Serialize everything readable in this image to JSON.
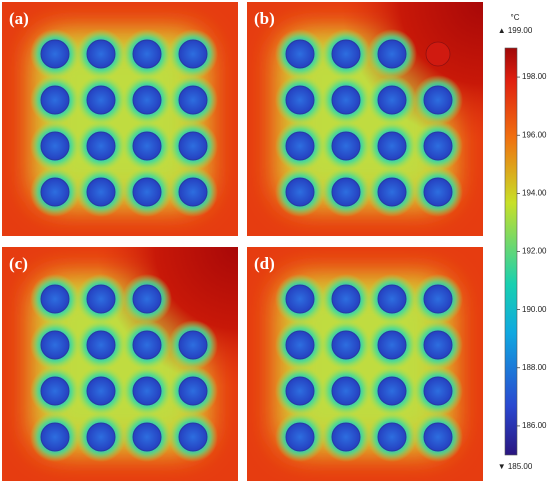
{
  "panels": [
    {
      "label": "(a)",
      "rows": 4,
      "cols": 4,
      "removed_cell": null
    },
    {
      "label": "(b)",
      "rows": 4,
      "cols": 4,
      "removed_cell": [
        0,
        3
      ]
    },
    {
      "label": "(c)",
      "rows": 4,
      "cols": 4,
      "removed_cell": [
        0,
        3
      ]
    },
    {
      "label": "(d)",
      "rows": 4,
      "cols": 4,
      "removed_cell": null
    }
  ],
  "colorbar": {
    "unit": "°C",
    "max": {
      "value": 199,
      "label": "▲ 199.00"
    },
    "min": {
      "value": 185,
      "label": "▼ 185.00"
    },
    "ticks": [
      {
        "value": 186,
        "label": "186.00"
      },
      {
        "value": 188,
        "label": "188.00"
      },
      {
        "value": 190,
        "label": "190.00"
      },
      {
        "value": 192,
        "label": "192.00"
      },
      {
        "value": 194,
        "label": "194.00"
      },
      {
        "value": 196,
        "label": "196.00"
      },
      {
        "value": 198,
        "label": "198.00"
      }
    ]
  }
}
